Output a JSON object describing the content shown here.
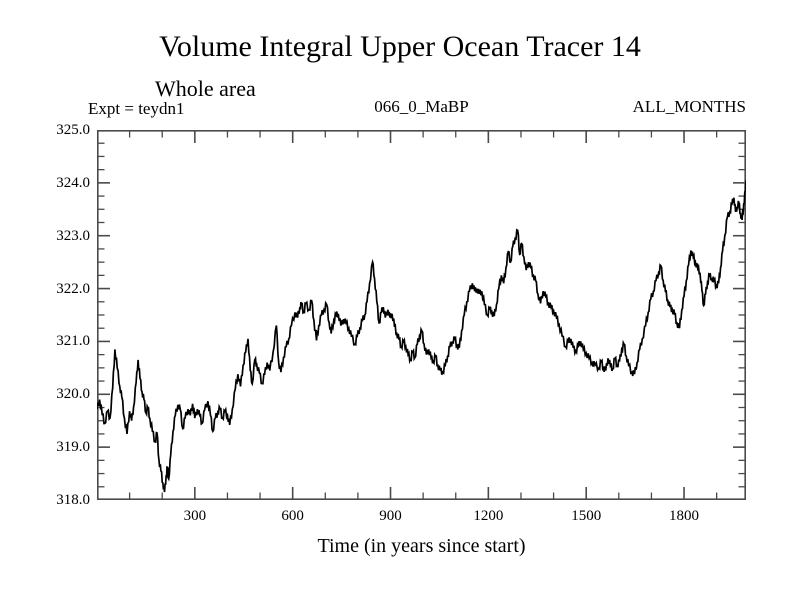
{
  "page": {
    "title": "Volume Integral Upper Ocean Tracer 14",
    "subtitle": "Whole area",
    "annotations": {
      "experiment": "Expt = teydn1",
      "dataset": "066_0_MaBP",
      "period": "ALL_MONTHS"
    }
  },
  "colors": {
    "background": "#ffffff",
    "frame": "#4a4a4a",
    "line": "#000000",
    "text": "#000000"
  },
  "chart_data": {
    "type": "line",
    "title": "Volume Integral Upper Ocean Tracer 14",
    "subtitle": "Whole area",
    "xlabel": "Time (in years since start)",
    "ylabel": "",
    "xlim": [
      0,
      1990
    ],
    "ylim": [
      318.0,
      325.0
    ],
    "x_major_ticks": [
      300,
      600,
      900,
      1200,
      1500,
      1800
    ],
    "x_minor_step": 100,
    "y_major_ticks": [
      318.0,
      319.0,
      320.0,
      321.0,
      322.0,
      323.0,
      324.0,
      325.0
    ],
    "y_minor_step": 0.25,
    "y_label_decimals": 1,
    "grid": false,
    "legend": "none",
    "series": [
      {
        "name": "tracer14",
        "points": [
          [
            0,
            319.72
          ],
          [
            8,
            319.9
          ],
          [
            16,
            319.62
          ],
          [
            24,
            319.45
          ],
          [
            32,
            319.68
          ],
          [
            40,
            319.55
          ],
          [
            48,
            320.12
          ],
          [
            55,
            320.85
          ],
          [
            62,
            320.5
          ],
          [
            70,
            320.15
          ],
          [
            76,
            319.95
          ],
          [
            84,
            319.55
          ],
          [
            92,
            319.25
          ],
          [
            100,
            319.68
          ],
          [
            106,
            319.5
          ],
          [
            112,
            319.75
          ],
          [
            120,
            320.22
          ],
          [
            126,
            320.65
          ],
          [
            132,
            320.3
          ],
          [
            138,
            320.05
          ],
          [
            144,
            319.9
          ],
          [
            150,
            319.65
          ],
          [
            156,
            319.75
          ],
          [
            162,
            319.55
          ],
          [
            170,
            319.3
          ],
          [
            178,
            319.1
          ],
          [
            184,
            319.27
          ],
          [
            190,
            318.75
          ],
          [
            196,
            318.55
          ],
          [
            202,
            318.32
          ],
          [
            207,
            318.15
          ],
          [
            212,
            318.45
          ],
          [
            216,
            318.62
          ],
          [
            220,
            318.4
          ],
          [
            226,
            318.85
          ],
          [
            233,
            319.3
          ],
          [
            240,
            319.6
          ],
          [
            248,
            319.8
          ],
          [
            255,
            319.72
          ],
          [
            263,
            319.35
          ],
          [
            270,
            319.55
          ],
          [
            279,
            319.72
          ],
          [
            286,
            319.6
          ],
          [
            293,
            319.82
          ],
          [
            300,
            319.55
          ],
          [
            308,
            319.72
          ],
          [
            315,
            319.6
          ],
          [
            322,
            319.45
          ],
          [
            330,
            319.7
          ],
          [
            340,
            319.87
          ],
          [
            348,
            319.6
          ],
          [
            355,
            319.3
          ],
          [
            363,
            319.55
          ],
          [
            370,
            319.65
          ],
          [
            377,
            319.73
          ],
          [
            385,
            319.55
          ],
          [
            392,
            319.68
          ],
          [
            400,
            319.6
          ],
          [
            407,
            319.42
          ],
          [
            415,
            319.72
          ],
          [
            424,
            320.1
          ],
          [
            432,
            320.38
          ],
          [
            440,
            320.15
          ],
          [
            448,
            320.55
          ],
          [
            456,
            320.8
          ],
          [
            463,
            321.05
          ],
          [
            470,
            320.45
          ],
          [
            476,
            320.2
          ],
          [
            484,
            320.65
          ],
          [
            490,
            320.55
          ],
          [
            498,
            320.4
          ],
          [
            506,
            320.2
          ],
          [
            514,
            320.38
          ],
          [
            522,
            320.6
          ],
          [
            530,
            320.45
          ],
          [
            540,
            320.8
          ],
          [
            550,
            321.3
          ],
          [
            557,
            320.6
          ],
          [
            564,
            320.42
          ],
          [
            572,
            320.7
          ],
          [
            580,
            320.9
          ],
          [
            588,
            321.05
          ],
          [
            596,
            321.3
          ],
          [
            607,
            321.55
          ],
          [
            615,
            321.45
          ],
          [
            622,
            321.65
          ],
          [
            627,
            321.7
          ],
          [
            634,
            321.55
          ],
          [
            640,
            321.72
          ],
          [
            650,
            321.6
          ],
          [
            658,
            321.77
          ],
          [
            665,
            321.4
          ],
          [
            673,
            321.02
          ],
          [
            680,
            321.3
          ],
          [
            688,
            321.5
          ],
          [
            696,
            321.6
          ],
          [
            704,
            321.7
          ],
          [
            712,
            321.35
          ],
          [
            718,
            321.15
          ],
          [
            726,
            321.4
          ],
          [
            733,
            321.5
          ],
          [
            740,
            321.52
          ],
          [
            748,
            321.3
          ],
          [
            756,
            321.42
          ],
          [
            764,
            321.35
          ],
          [
            772,
            321.25
          ],
          [
            780,
            321.1
          ],
          [
            791,
            320.95
          ],
          [
            798,
            321.1
          ],
          [
            806,
            321.25
          ],
          [
            814,
            321.4
          ],
          [
            821,
            321.5
          ],
          [
            828,
            321.75
          ],
          [
            836,
            322.1
          ],
          [
            845,
            322.5
          ],
          [
            851,
            322.2
          ],
          [
            858,
            321.75
          ],
          [
            865,
            321.35
          ],
          [
            872,
            321.55
          ],
          [
            878,
            321.65
          ],
          [
            884,
            321.45
          ],
          [
            892,
            321.6
          ],
          [
            898,
            321.45
          ],
          [
            905,
            321.52
          ],
          [
            912,
            321.3
          ],
          [
            919,
            321.15
          ],
          [
            926,
            321.05
          ],
          [
            933,
            320.9
          ],
          [
            940,
            321.0
          ],
          [
            947,
            320.9
          ],
          [
            954,
            320.75
          ],
          [
            961,
            320.66
          ],
          [
            968,
            320.8
          ],
          [
            975,
            320.7
          ],
          [
            982,
            320.95
          ],
          [
            989,
            321.1
          ],
          [
            996,
            321.2
          ],
          [
            1003,
            320.95
          ],
          [
            1010,
            320.75
          ],
          [
            1017,
            320.85
          ],
          [
            1024,
            320.7
          ],
          [
            1031,
            320.62
          ],
          [
            1038,
            320.72
          ],
          [
            1045,
            320.55
          ],
          [
            1052,
            320.45
          ],
          [
            1060,
            320.42
          ],
          [
            1068,
            320.55
          ],
          [
            1075,
            320.72
          ],
          [
            1082,
            320.9
          ],
          [
            1090,
            321.0
          ],
          [
            1097,
            321.05
          ],
          [
            1104,
            320.92
          ],
          [
            1111,
            320.88
          ],
          [
            1118,
            321.2
          ],
          [
            1126,
            321.5
          ],
          [
            1134,
            321.75
          ],
          [
            1142,
            321.95
          ],
          [
            1151,
            322.1
          ],
          [
            1158,
            321.95
          ],
          [
            1165,
            322.0
          ],
          [
            1172,
            321.9
          ],
          [
            1180,
            321.95
          ],
          [
            1188,
            321.7
          ],
          [
            1197,
            321.5
          ],
          [
            1204,
            321.62
          ],
          [
            1211,
            321.55
          ],
          [
            1218,
            321.48
          ],
          [
            1225,
            321.7
          ],
          [
            1232,
            322.0
          ],
          [
            1240,
            322.25
          ],
          [
            1247,
            322.1
          ],
          [
            1254,
            322.4
          ],
          [
            1261,
            322.7
          ],
          [
            1268,
            322.5
          ],
          [
            1275,
            322.8
          ],
          [
            1282,
            322.95
          ],
          [
            1290,
            323.1
          ],
          [
            1296,
            322.65
          ],
          [
            1302,
            322.85
          ],
          [
            1309,
            322.6
          ],
          [
            1316,
            322.35
          ],
          [
            1323,
            322.5
          ],
          [
            1330,
            322.4
          ],
          [
            1338,
            322.25
          ],
          [
            1345,
            322.15
          ],
          [
            1352,
            321.9
          ],
          [
            1360,
            321.72
          ],
          [
            1368,
            321.95
          ],
          [
            1376,
            321.85
          ],
          [
            1384,
            321.72
          ],
          [
            1392,
            321.65
          ],
          [
            1400,
            321.58
          ],
          [
            1409,
            321.45
          ],
          [
            1417,
            321.32
          ],
          [
            1426,
            321.1
          ],
          [
            1437,
            320.9
          ],
          [
            1445,
            321.0
          ],
          [
            1453,
            321.05
          ],
          [
            1460,
            320.88
          ],
          [
            1468,
            320.82
          ],
          [
            1476,
            320.92
          ],
          [
            1483,
            321.0
          ],
          [
            1491,
            320.85
          ],
          [
            1500,
            320.78
          ],
          [
            1509,
            320.68
          ],
          [
            1518,
            320.6
          ],
          [
            1527,
            320.55
          ],
          [
            1539,
            320.5
          ],
          [
            1546,
            320.62
          ],
          [
            1553,
            320.5
          ],
          [
            1560,
            320.45
          ],
          [
            1567,
            320.68
          ],
          [
            1574,
            320.55
          ],
          [
            1581,
            320.48
          ],
          [
            1588,
            320.68
          ],
          [
            1595,
            320.55
          ],
          [
            1602,
            320.62
          ],
          [
            1609,
            320.85
          ],
          [
            1616,
            320.95
          ],
          [
            1623,
            320.72
          ],
          [
            1630,
            320.55
          ],
          [
            1640,
            320.42
          ],
          [
            1648,
            320.38
          ],
          [
            1656,
            320.6
          ],
          [
            1664,
            320.85
          ],
          [
            1672,
            321.05
          ],
          [
            1682,
            321.3
          ],
          [
            1690,
            321.55
          ],
          [
            1698,
            321.8
          ],
          [
            1706,
            321.95
          ],
          [
            1714,
            322.15
          ],
          [
            1722,
            322.3
          ],
          [
            1729,
            322.43
          ],
          [
            1736,
            322.15
          ],
          [
            1743,
            321.95
          ],
          [
            1750,
            321.78
          ],
          [
            1757,
            321.65
          ],
          [
            1764,
            321.6
          ],
          [
            1771,
            321.52
          ],
          [
            1778,
            321.35
          ],
          [
            1786,
            321.25
          ],
          [
            1793,
            321.6
          ],
          [
            1800,
            321.85
          ],
          [
            1807,
            322.15
          ],
          [
            1814,
            322.45
          ],
          [
            1821,
            322.72
          ],
          [
            1828,
            322.6
          ],
          [
            1835,
            322.5
          ],
          [
            1842,
            322.38
          ],
          [
            1849,
            322.3
          ],
          [
            1855,
            321.95
          ],
          [
            1860,
            321.68
          ],
          [
            1866,
            321.9
          ],
          [
            1872,
            322.12
          ],
          [
            1878,
            322.25
          ],
          [
            1885,
            322.2
          ],
          [
            1892,
            322.15
          ],
          [
            1899,
            322.05
          ],
          [
            1906,
            322.1
          ],
          [
            1912,
            322.4
          ],
          [
            1918,
            322.7
          ],
          [
            1925,
            323.0
          ],
          [
            1933,
            323.35
          ],
          [
            1940,
            323.45
          ],
          [
            1947,
            323.6
          ],
          [
            1953,
            323.72
          ],
          [
            1958,
            323.45
          ],
          [
            1963,
            323.55
          ],
          [
            1968,
            323.62
          ],
          [
            1973,
            323.42
          ],
          [
            1978,
            323.3
          ],
          [
            1983,
            323.6
          ],
          [
            1988,
            323.85
          ],
          [
            1990,
            324.05
          ]
        ]
      }
    ]
  }
}
